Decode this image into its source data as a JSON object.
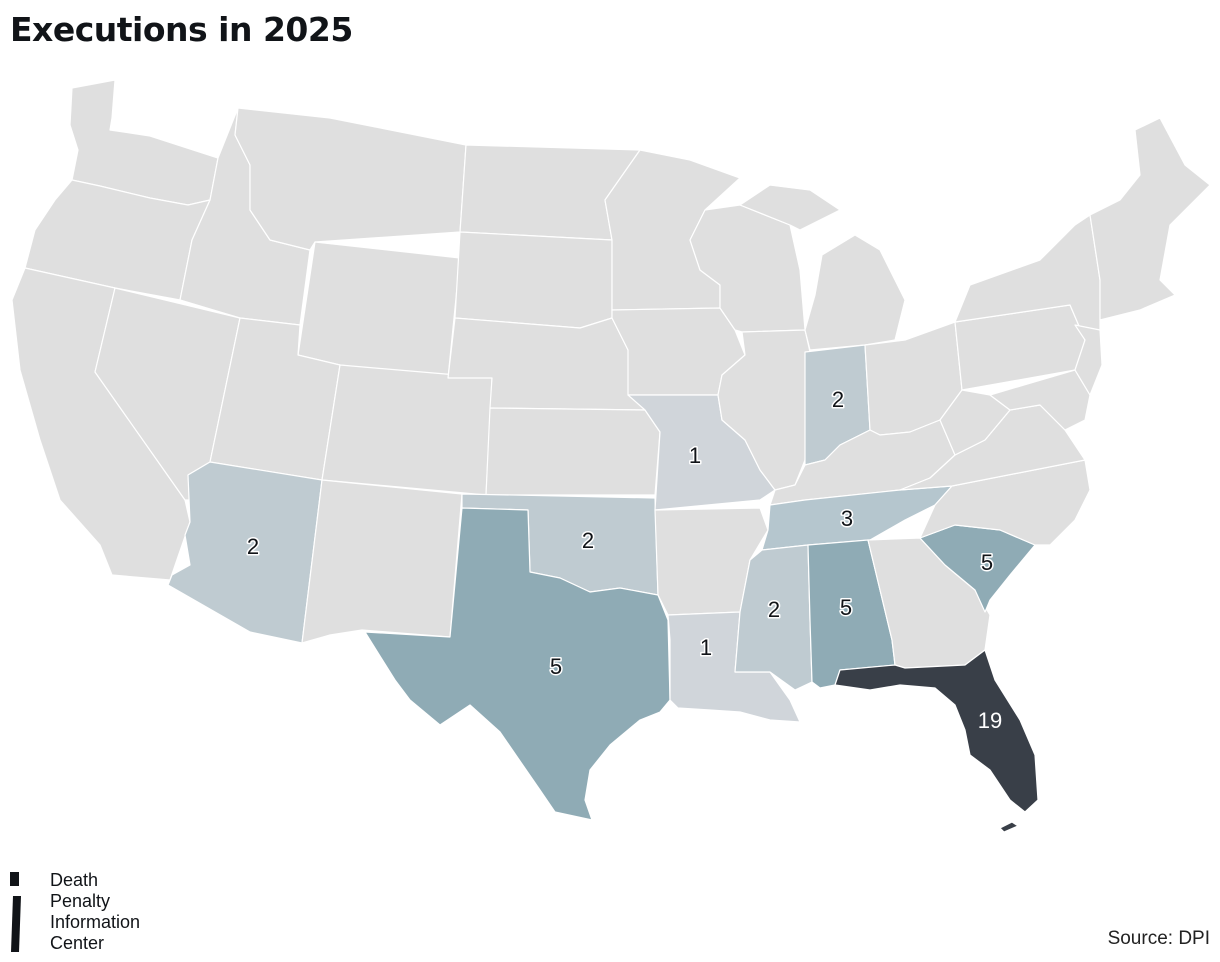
{
  "title": "Executions in 2025",
  "source": "Source: DPI",
  "logo": {
    "lines": [
      "Death",
      "Penalty",
      "Information",
      "Center"
    ]
  },
  "colors": {
    "none": "#dfdfdf",
    "one": "#d0d5da",
    "two": "#bfcbd1",
    "three": "#b5c6ce",
    "five": "#8fabb5",
    "nineteen": "#393f48",
    "border": "#ffffff"
  },
  "map_data": {
    "type": "choropleth",
    "region": "United States (contiguous)",
    "states": [
      {
        "state": "Florida",
        "executions": 19
      },
      {
        "state": "Texas",
        "executions": 5
      },
      {
        "state": "Alabama",
        "executions": 5
      },
      {
        "state": "South Carolina",
        "executions": 5
      },
      {
        "state": "Tennessee",
        "executions": 3
      },
      {
        "state": "Arizona",
        "executions": 2
      },
      {
        "state": "Oklahoma",
        "executions": 2
      },
      {
        "state": "Indiana",
        "executions": 2
      },
      {
        "state": "Mississippi",
        "executions": 2
      },
      {
        "state": "Missouri",
        "executions": 1
      },
      {
        "state": "Louisiana",
        "executions": 1
      }
    ]
  }
}
